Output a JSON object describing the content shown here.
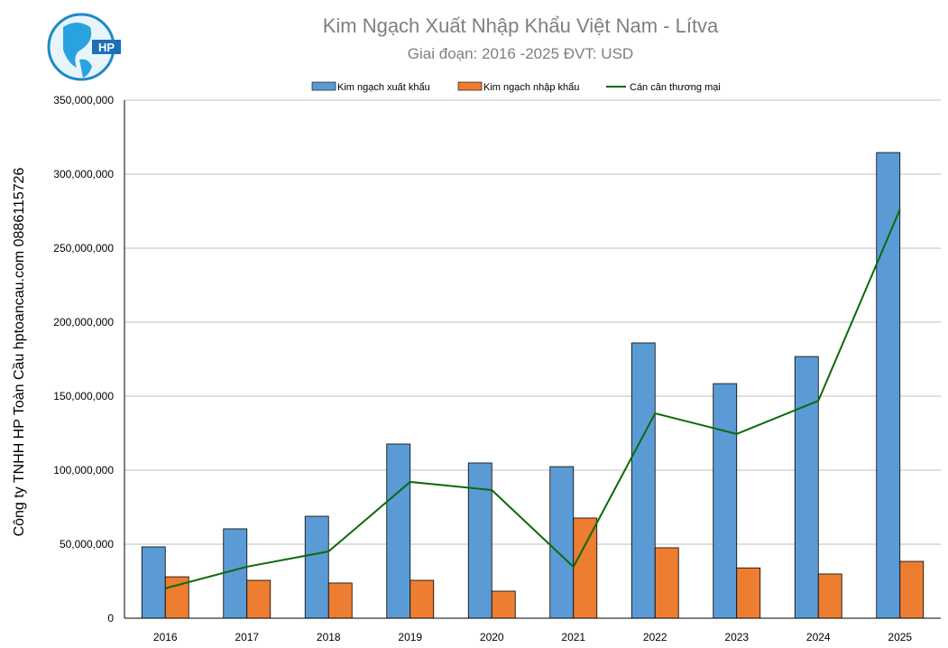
{
  "chart_data": {
    "type": "bar",
    "title": "Kim Ngạch Xuất Nhập Khẩu Việt Nam - Lítva",
    "subtitle": "Giai đoạn: 2016 -2025  ĐVT: USD",
    "side_label": "Công ty TNHH HP Toàn Cầu hptoancau.com 0886115726",
    "logo_text": "HP",
    "categories": [
      "2016",
      "2017",
      "2018",
      "2019",
      "2020",
      "2021",
      "2022",
      "2023",
      "2024",
      "2025"
    ],
    "ylim": [
      0,
      350000000
    ],
    "yticks": [
      0,
      50000000,
      100000000,
      150000000,
      200000000,
      250000000,
      300000000,
      350000000
    ],
    "ytick_labels": [
      "0",
      "50,000,000",
      "100,000,000",
      "150,000,000",
      "200,000,000",
      "250,000,000",
      "300,000,000",
      "350,000,000"
    ],
    "grid": true,
    "legend_position": "top-center",
    "series": [
      {
        "name": "Kim ngạch xuất khẩu",
        "type": "bar",
        "color": "#5b9bd5",
        "values": [
          48200000,
          60400000,
          68900000,
          117700000,
          104900000,
          102400000,
          186000000,
          158500000,
          176800000,
          314600000
        ]
      },
      {
        "name": "Kim ngạch nhập khẩu",
        "type": "bar",
        "color": "#ed7d31",
        "values": [
          28000000,
          25600000,
          23800000,
          25600000,
          18300000,
          67700000,
          47600000,
          34000000,
          29900000,
          38400000
        ]
      },
      {
        "name": "Cán cân thương mại",
        "type": "line",
        "color": "#0b6a0b",
        "values": [
          20200000,
          34800000,
          45100000,
          92100000,
          86600000,
          34700000,
          138400000,
          124500000,
          146900000,
          276200000
        ]
      }
    ]
  }
}
